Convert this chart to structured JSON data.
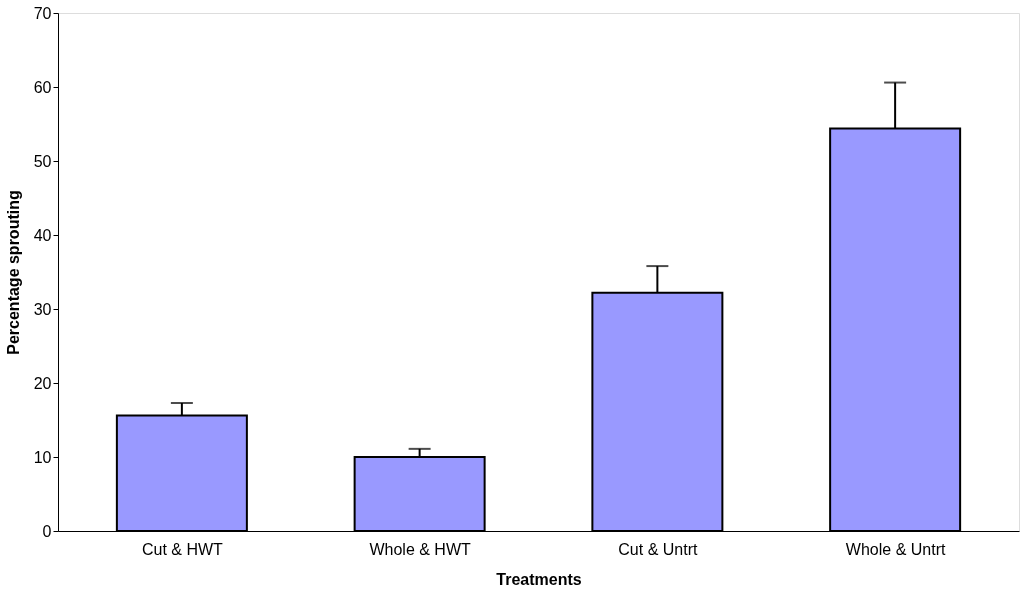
{
  "chart_data": {
    "type": "bar",
    "xlabel": "Treatments",
    "ylabel": "Percentage sprouting",
    "categories": [
      "Cut & HWT",
      "Whole & HWT",
      "Cut & Untrt",
      "Whole & Untrt"
    ],
    "values": [
      15.6,
      10.0,
      32.2,
      54.4
    ],
    "errors": [
      1.7,
      1.1,
      3.6,
      6.2
    ],
    "color": "#9999ff",
    "ylim": [
      0,
      70
    ],
    "yticks": [
      0,
      10,
      20,
      30,
      40,
      50,
      60,
      70
    ],
    "grid": false
  }
}
